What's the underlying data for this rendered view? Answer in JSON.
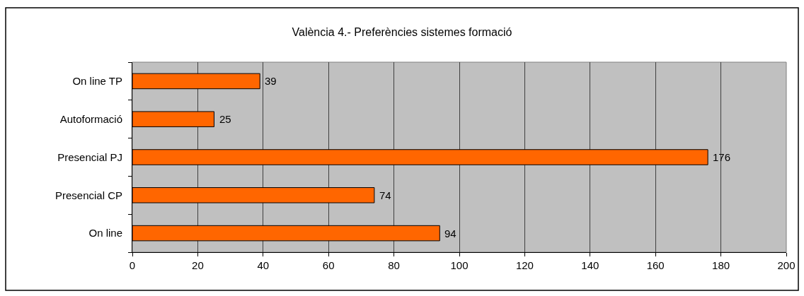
{
  "chart_data": {
    "type": "bar",
    "orientation": "horizontal",
    "title": "València 4.- Preferències sistemes formació",
    "categories": [
      "On line TP",
      "Autoformació",
      "Presencial PJ",
      "Presencial CP",
      "On line"
    ],
    "values": [
      39,
      25,
      176,
      74,
      94
    ],
    "color": "#ff6600",
    "xlim": [
      0,
      200
    ],
    "xticks": [
      0,
      20,
      40,
      60,
      80,
      100,
      120,
      140,
      160,
      180,
      200
    ],
    "data_labels": true,
    "grid": "x"
  }
}
